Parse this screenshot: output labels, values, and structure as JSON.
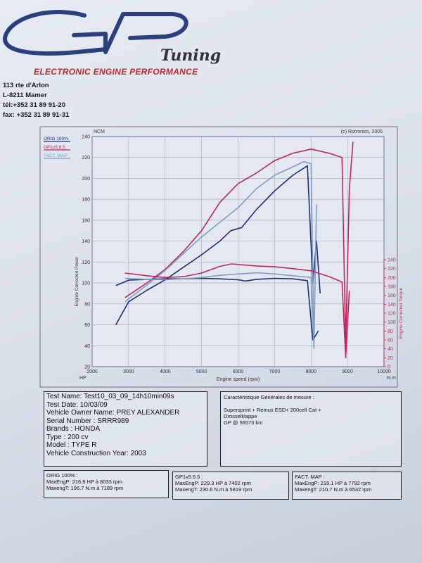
{
  "logo": {
    "brand": "GP",
    "sub": "Tuning"
  },
  "header": {
    "subtitle": "ELECTRONIC ENGINE PERFORMANCE",
    "address_lines": [
      "113 rte d'Arlon",
      "L-8211 Mamer",
      "tél:+352 31 89 91-20",
      "fax: +352 31 89 91-31"
    ]
  },
  "colors": {
    "orig": "#1e2d78",
    "gp": "#c0265e",
    "fact": "#7f9ec4",
    "grid": "#a7a7a7",
    "axis": "#1e2d78"
  },
  "chart_data": {
    "type": "line",
    "title": "",
    "copyright": "(c) Rotronics, 2005",
    "left_unit_top": "NCM",
    "left_unit_bottom": "HP",
    "right_unit": "N.m",
    "xlabel": "Engine speed (rpm)",
    "ylabel_left": "Engine Corrected Power",
    "ylabel_right": "Engine Corrected Torque",
    "xlim": [
      2000,
      10000
    ],
    "ylim_left": [
      20,
      240
    ],
    "ylim_right": [
      0,
      240
    ],
    "x_ticks": [
      2000,
      3000,
      4000,
      5000,
      6000,
      7000,
      8000,
      9000,
      10000
    ],
    "y_left_ticks": [
      20,
      40,
      60,
      80,
      100,
      120,
      140,
      160,
      180,
      200,
      220,
      240
    ],
    "y_right_ticks": [
      0,
      20,
      40,
      60,
      80,
      100,
      120,
      140,
      160,
      180,
      200,
      220,
      240
    ],
    "legend": [
      "ORIG 100%",
      "GP1v5.6.5",
      "FACT. MAP"
    ],
    "legend_position": "top-left",
    "grid": true,
    "series": [
      {
        "name": "ORIG 100%",
        "kind": "power",
        "color": "#1e2d78",
        "x": [
          2650,
          3000,
          3500,
          4000,
          4500,
          5000,
          5500,
          5800,
          6100,
          6500,
          7000,
          7500,
          7900,
          8050,
          8150,
          8250
        ],
        "y": [
          60,
          82,
          93,
          103,
          115,
          127,
          140,
          150,
          153,
          170,
          188,
          203,
          212,
          100,
          140,
          90
        ]
      },
      {
        "name": "GP1v5.6.5",
        "kind": "power",
        "color": "#c0265e",
        "x": [
          2900,
          3500,
          4000,
          4500,
          5000,
          5500,
          6000,
          6500,
          7000,
          7500,
          8000,
          8500,
          8850,
          8950,
          9050,
          9150
        ],
        "y": [
          86,
          100,
          113,
          130,
          150,
          177,
          195,
          205,
          217,
          224,
          228,
          224,
          220,
          40,
          190,
          235
        ]
      },
      {
        "name": "FACT. MAP",
        "kind": "power",
        "color": "#7f9ec4",
        "x": [
          2900,
          3500,
          4000,
          4500,
          5000,
          5500,
          6000,
          6500,
          7000,
          7500,
          7800,
          8000,
          8080,
          8150
        ],
        "y": [
          82,
          98,
          112,
          128,
          144,
          158,
          172,
          190,
          203,
          211,
          216,
          214,
          40,
          175
        ]
      },
      {
        "name": "ORIG 100%",
        "kind": "torque",
        "color": "#1e2d78",
        "x": [
          2650,
          3000,
          3500,
          4000,
          4500,
          5000,
          5500,
          6000,
          6200,
          6500,
          7000,
          7500,
          7900,
          8050,
          8200
        ],
        "y": [
          182,
          194,
          196,
          197,
          197,
          198,
          197,
          195,
          192,
          196,
          198,
          197,
          193,
          60,
          80
        ]
      },
      {
        "name": "GP1v5.6.5",
        "kind": "torque",
        "color": "#c0265e",
        "x": [
          2900,
          3500,
          4000,
          4500,
          5000,
          5500,
          5819,
          6500,
          7000,
          7500,
          8000,
          8500,
          8850,
          8950,
          9050
        ],
        "y": [
          210,
          204,
          200,
          202,
          210,
          225,
          230.6,
          226,
          224,
          220,
          215,
          202,
          190,
          20,
          170
        ]
      },
      {
        "name": "FACT. MAP",
        "kind": "torque",
        "color": "#7f9ec4",
        "x": [
          2900,
          3500,
          4000,
          4500,
          5000,
          5500,
          6000,
          6532,
          7000,
          7500,
          8000,
          8080
        ],
        "y": [
          198,
          196,
          195,
          197,
          200,
          205,
          208,
          210.7,
          208,
          204,
          200,
          40
        ]
      }
    ]
  },
  "test_info": {
    "lines": [
      "Test Name: Test10_03_09_14h10min09s",
      "Test Date: 10/03/09",
      "Vehicle Owner Name: PREY ALEXANDER",
      "Serial Number  : SRRR989",
      "Brands   : HONDA",
      "Type   : 200 cv",
      "Model   : TYPE R",
      "Vehicle Construction Year: 2003"
    ]
  },
  "measure": {
    "title": "Caractéristique Générales de mesure :",
    "lines": [
      "Supersprint + Remus ESD+ 200cell Cat +",
      "Drosselklappe",
      "GP @ 56573 km"
    ]
  },
  "results": [
    {
      "name": "ORIG 100% :",
      "power": "MaxEngP:  216.8 HP à 8033 rpm",
      "torque": "MaxengT:  196.7 N.m à 7189 rpm"
    },
    {
      "name": "GP1v5.6.5 :",
      "power": "MaxEngP:  229.3 HP à 7402 rpm",
      "torque": "MaxengT:  230.6 N.m à 5819 rpm"
    },
    {
      "name": "FACT. MAP :",
      "power": "MaxEngP:  219.1 HP à 7792 rpm",
      "torque": "MaxengT:  210.7 N.m à 6532 rpm"
    }
  ]
}
